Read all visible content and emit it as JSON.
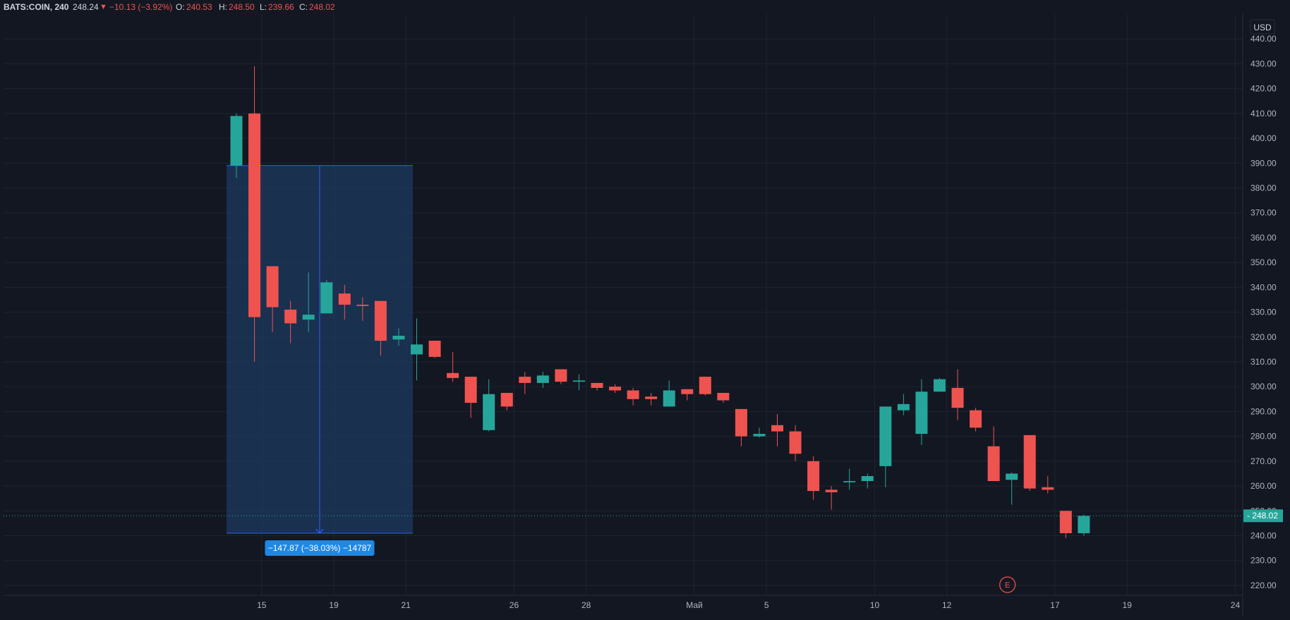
{
  "colors": {
    "background": "#131722",
    "grid": "#1f2430",
    "axis_text": "#b2b5be",
    "up": "#26a69a",
    "down": "#ef5350",
    "measure_fill": "#1e3a5f",
    "measure_line": "#2962ff",
    "measure_label_bg": "#1e88e5",
    "last_price_bg": "#26a69a",
    "earnings": "#ef5350"
  },
  "header": {
    "symbol": "BATS:COIN, 240",
    "last": "248.24",
    "change_arrow": "▼",
    "change": "−10.13 (−3.92%)",
    "open_label": "O:",
    "open": "240.53",
    "high_label": "H:",
    "high": "248.50",
    "low_label": "L:",
    "low": "239.66",
    "close_label": "C:",
    "close": "248.02"
  },
  "chart_data": {
    "type": "candlestick",
    "currency": "USD",
    "ylim": [
      216,
      450
    ],
    "y_ticks": [
      "440.00",
      "430.00",
      "420.00",
      "410.00",
      "400.00",
      "390.00",
      "380.00",
      "370.00",
      "360.00",
      "350.00",
      "340.00",
      "330.00",
      "320.00",
      "310.00",
      "300.00",
      "290.00",
      "280.00",
      "270.00",
      "260.00",
      "250.00",
      "240.00",
      "230.00",
      "220.00"
    ],
    "x_ticks": [
      {
        "label": "15",
        "index": 1.4
      },
      {
        "label": "19",
        "index": 5.4
      },
      {
        "label": "21",
        "index": 9.4
      },
      {
        "label": "26",
        "index": 15.4
      },
      {
        "label": "28",
        "index": 19.4
      },
      {
        "label": "Май",
        "index": 25.4
      },
      {
        "label": "5",
        "index": 29.4
      },
      {
        "label": "10",
        "index": 35.4
      },
      {
        "label": "12",
        "index": 39.4
      },
      {
        "label": "17",
        "index": 45.4
      },
      {
        "label": "19",
        "index": 49.4
      },
      {
        "label": "24",
        "index": 55.4
      }
    ],
    "last_price": "248.02",
    "candles": [
      {
        "o": 389.0,
        "h": 410.0,
        "l": 384.0,
        "c": 409.0
      },
      {
        "o": 410.0,
        "h": 429.0,
        "l": 310.0,
        "c": 328.0
      },
      {
        "o": 348.5,
        "h": 348.5,
        "l": 322.0,
        "c": 332.0
      },
      {
        "o": 331.0,
        "h": 334.5,
        "l": 317.5,
        "c": 325.5
      },
      {
        "o": 327.0,
        "h": 346.0,
        "l": 322.0,
        "c": 329.0
      },
      {
        "o": 329.5,
        "h": 343.0,
        "l": 329.5,
        "c": 342.0
      },
      {
        "o": 337.5,
        "h": 341.0,
        "l": 327.0,
        "c": 333.0
      },
      {
        "o": 333.0,
        "h": 336.0,
        "l": 326.5,
        "c": 332.5
      },
      {
        "o": 334.5,
        "h": 334.5,
        "l": 312.5,
        "c": 318.5
      },
      {
        "o": 319.0,
        "h": 323.5,
        "l": 316.5,
        "c": 320.5
      },
      {
        "o": 313.0,
        "h": 327.5,
        "l": 302.5,
        "c": 317.0
      },
      {
        "o": 318.5,
        "h": 318.5,
        "l": 311.5,
        "c": 312.0
      },
      {
        "o": 305.5,
        "h": 314.0,
        "l": 302.0,
        "c": 303.5
      },
      {
        "o": 304.0,
        "h": 304.0,
        "l": 287.5,
        "c": 293.5
      },
      {
        "o": 282.5,
        "h": 303.0,
        "l": 282.0,
        "c": 297.0
      },
      {
        "o": 297.5,
        "h": 297.5,
        "l": 290.5,
        "c": 292.0
      },
      {
        "o": 304.0,
        "h": 306.0,
        "l": 297.0,
        "c": 301.5
      },
      {
        "o": 301.5,
        "h": 306.0,
        "l": 299.5,
        "c": 304.5
      },
      {
        "o": 307.0,
        "h": 307.0,
        "l": 301.0,
        "c": 302.0
      },
      {
        "o": 302.0,
        "h": 305.0,
        "l": 298.5,
        "c": 302.5
      },
      {
        "o": 301.5,
        "h": 301.5,
        "l": 298.5,
        "c": 299.5
      },
      {
        "o": 300.0,
        "h": 301.0,
        "l": 297.5,
        "c": 298.5
      },
      {
        "o": 298.5,
        "h": 299.5,
        "l": 292.5,
        "c": 295.0
      },
      {
        "o": 296.0,
        "h": 297.5,
        "l": 292.5,
        "c": 295.0
      },
      {
        "o": 292.0,
        "h": 302.5,
        "l": 292.0,
        "c": 298.5
      },
      {
        "o": 299.0,
        "h": 299.0,
        "l": 294.5,
        "c": 297.0
      },
      {
        "o": 304.0,
        "h": 304.0,
        "l": 296.5,
        "c": 297.0
      },
      {
        "o": 297.5,
        "h": 297.5,
        "l": 293.5,
        "c": 294.5
      },
      {
        "o": 291.0,
        "h": 291.0,
        "l": 276.0,
        "c": 280.0
      },
      {
        "o": 280.0,
        "h": 283.5,
        "l": 279.5,
        "c": 281.0
      },
      {
        "o": 284.5,
        "h": 289.0,
        "l": 276.0,
        "c": 282.0
      },
      {
        "o": 282.0,
        "h": 284.5,
        "l": 270.0,
        "c": 273.0
      },
      {
        "o": 270.0,
        "h": 272.0,
        "l": 254.5,
        "c": 258.0
      },
      {
        "o": 258.5,
        "h": 260.0,
        "l": 250.5,
        "c": 257.5
      },
      {
        "o": 261.5,
        "h": 267.0,
        "l": 258.5,
        "c": 262.0
      },
      {
        "o": 262.0,
        "h": 265.0,
        "l": 259.0,
        "c": 264.0
      },
      {
        "o": 268.0,
        "h": 292.0,
        "l": 259.5,
        "c": 292.0
      },
      {
        "o": 290.5,
        "h": 297.0,
        "l": 288.5,
        "c": 293.0
      },
      {
        "o": 281.0,
        "h": 303.0,
        "l": 276.5,
        "c": 298.0
      },
      {
        "o": 298.0,
        "h": 303.5,
        "l": 298.0,
        "c": 303.0
      },
      {
        "o": 299.5,
        "h": 307.0,
        "l": 286.5,
        "c": 291.5
      },
      {
        "o": 290.5,
        "h": 291.5,
        "l": 282.0,
        "c": 283.5
      },
      {
        "o": 276.0,
        "h": 284.0,
        "l": 262.0,
        "c": 262.0
      },
      {
        "o": 262.5,
        "h": 265.5,
        "l": 252.5,
        "c": 265.0
      },
      {
        "o": 280.5,
        "h": 280.5,
        "l": 258.0,
        "c": 259.0
      },
      {
        "o": 259.5,
        "h": 264.0,
        "l": 257.0,
        "c": 258.5
      },
      {
        "o": 250.0,
        "h": 250.0,
        "l": 239.0,
        "c": 241.0
      },
      {
        "o": 241.0,
        "h": 248.5,
        "l": 240.0,
        "c": 248.0
      }
    ],
    "measure": {
      "from_price": 389.0,
      "to_price": 241.0,
      "start_index": 0.0,
      "end_index": 9.0,
      "label": "−147.87 (−38.03%) −14787"
    },
    "earnings_marker": {
      "label": "E",
      "index": 43.0
    }
  }
}
